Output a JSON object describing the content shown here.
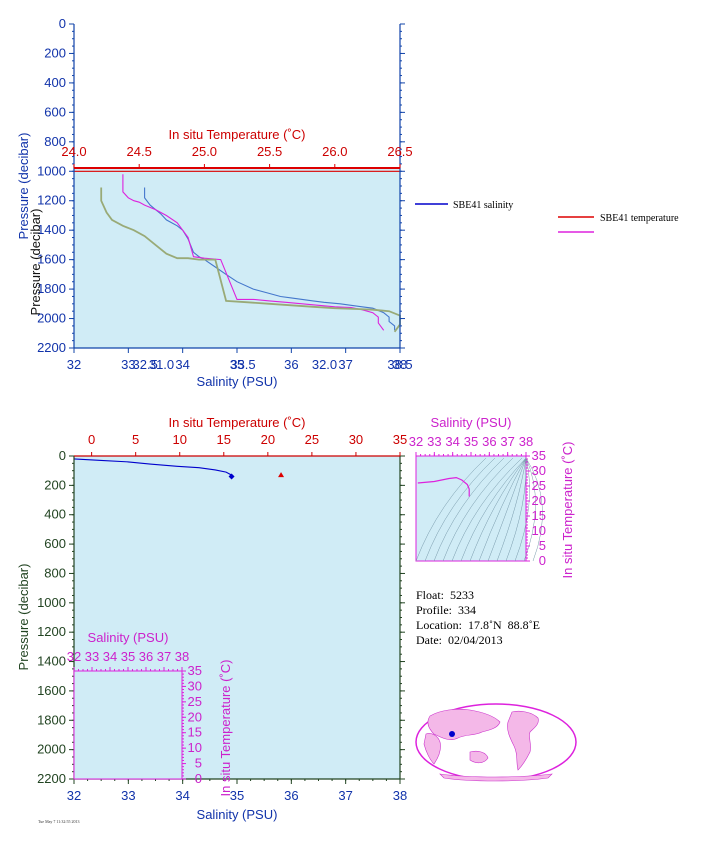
{
  "colors": {
    "plot_bg": "#d0ecf6",
    "salinity": "#0000cc",
    "temperature": "#dd0000",
    "magenta": "#dd22dd",
    "olive": "#99aa77",
    "dark_green": "#224422",
    "tick_blue": "#1144aa"
  },
  "chart_data": [
    {
      "type": "line",
      "title": "",
      "legend": [
        {
          "name": "SBE41 salinity",
          "color": "#0000cc"
        },
        {
          "name": "SBE41 temperature",
          "color": "#dd0000"
        },
        {
          "name": "",
          "color": "#dd22dd"
        }
      ],
      "top_axis": {
        "label": "In situ Temperature (˚C)",
        "ticks": [
          "24.0",
          "24.5",
          "25.0",
          "25.5",
          "26.0",
          "26.5"
        ],
        "range": [
          24.0,
          26.5
        ]
      },
      "bottom_axis": {
        "label": "Salinity (PSU)",
        "ticks": [
          "32",
          "33",
          "34",
          "35",
          "36",
          "37",
          "38"
        ],
        "overlay_ticks": [
          "32.5",
          "31.0",
          "33.5",
          "32.0",
          "38.5"
        ],
        "range": [
          32,
          38
        ]
      },
      "y_axis": {
        "label": "Pressure (decibar)",
        "ticks": [
          "0",
          "200",
          "400",
          "600",
          "800",
          "1000",
          "1200",
          "1400",
          "1600",
          "1800",
          "2000",
          "2200"
        ],
        "range": [
          0,
          2200
        ],
        "plot_range": [
          1000,
          2200
        ]
      },
      "series": [
        {
          "color": "#dd0000",
          "x": [
            24.0,
            26.5
          ],
          "y": [
            1000,
            1000
          ]
        },
        {
          "color": "#4477cc",
          "x": [
            33.3,
            33.3,
            33.4,
            33.5,
            33.6,
            33.7,
            33.9,
            34.0,
            34.1,
            34.2,
            34.3,
            34.4,
            34.6,
            34.8,
            35.0,
            35.3,
            35.6,
            35.8,
            36.0,
            36.2,
            36.4,
            36.6,
            36.9,
            37.1,
            37.3,
            37.5,
            37.7,
            37.8,
            37.8,
            37.9,
            37.9
          ],
          "y": [
            1110,
            1180,
            1230,
            1260,
            1290,
            1330,
            1370,
            1400,
            1460,
            1550,
            1580,
            1600,
            1650,
            1700,
            1750,
            1800,
            1830,
            1850,
            1860,
            1870,
            1880,
            1890,
            1900,
            1910,
            1920,
            1930,
            1960,
            1990,
            2020,
            2050,
            2080
          ]
        },
        {
          "color": "#dd22dd",
          "x": [
            32.9,
            32.9,
            32.9,
            33.0,
            33.1,
            33.2,
            33.3,
            33.5,
            33.7,
            33.9,
            34.0,
            34.1,
            34.2,
            34.4,
            34.7,
            35.0,
            35.3,
            35.6,
            35.9,
            36.2,
            36.5,
            36.8,
            37.1,
            37.3,
            37.5,
            37.6,
            37.6,
            37.7
          ],
          "y": [
            1020,
            1090,
            1140,
            1180,
            1200,
            1210,
            1230,
            1260,
            1300,
            1350,
            1400,
            1450,
            1580,
            1590,
            1600,
            1870,
            1870,
            1880,
            1890,
            1900,
            1910,
            1920,
            1925,
            1940,
            1960,
            1990,
            2030,
            2080
          ]
        },
        {
          "color": "#99aa77",
          "x": [
            32.5,
            32.5,
            32.6,
            32.7,
            32.9,
            33.1,
            33.3,
            33.5,
            33.7,
            33.9,
            34.1,
            34.3,
            34.5,
            34.6,
            34.8,
            35.2,
            35.6,
            36.0,
            36.4,
            36.8,
            37.2,
            37.5,
            37.8,
            38.0,
            38.0,
            37.9
          ],
          "y": [
            1110,
            1200,
            1280,
            1330,
            1370,
            1400,
            1440,
            1500,
            1560,
            1590,
            1590,
            1600,
            1600,
            1600,
            1880,
            1890,
            1900,
            1910,
            1920,
            1930,
            1935,
            1940,
            1950,
            1980,
            2040,
            2090
          ]
        }
      ]
    },
    {
      "type": "line",
      "top_axis": {
        "label": "In situ Temperature (˚C)",
        "ticks": [
          "0",
          "5",
          "10",
          "15",
          "20",
          "25",
          "30",
          "35"
        ],
        "range": [
          -2,
          35
        ]
      },
      "bottom_axis": {
        "label": "Salinity (PSU)",
        "ticks": [
          "32",
          "33",
          "34",
          "35",
          "36",
          "37",
          "38"
        ],
        "range": [
          32,
          38
        ]
      },
      "y_axis": {
        "label": "Pressure (decibar)",
        "ticks": [
          "0",
          "200",
          "400",
          "600",
          "800",
          "1000",
          "1200",
          "1400",
          "1600",
          "1800",
          "2000",
          "2200"
        ],
        "range": [
          0,
          2200
        ]
      },
      "series": [
        {
          "color": "#0000cc",
          "x": [
            32.0,
            32.5,
            33.0,
            33.4,
            33.9,
            34.3,
            34.6,
            34.8,
            34.9,
            34.9
          ],
          "y": [
            20,
            30,
            40,
            55,
            70,
            80,
            95,
            110,
            130,
            140
          ]
        }
      ],
      "markers": [
        {
          "shape": "diamond",
          "color": "#0000cc",
          "x": 34.9,
          "y": 140
        },
        {
          "shape": "triangle",
          "color": "#dd0000",
          "temp": 21.5,
          "y": 130
        }
      ]
    },
    {
      "type": "scatter",
      "top_axis": {
        "label": "Salinity (PSU)",
        "ticks": [
          "32",
          "33",
          "34",
          "35",
          "36",
          "37",
          "38"
        ],
        "range": [
          32,
          38
        ]
      },
      "right_axis": {
        "label": "In situ Temperature (˚C)",
        "ticks": [
          "0",
          "5",
          "10",
          "15",
          "20",
          "25",
          "30",
          "35"
        ],
        "range": [
          0,
          35
        ]
      },
      "series": [
        {
          "color": "#dd22dd",
          "x": [
            32.1,
            33.0,
            33.8,
            34.2,
            34.5,
            34.8,
            34.9,
            34.9
          ],
          "y": [
            26.0,
            26.5,
            27.5,
            27.8,
            27.0,
            25.5,
            24.0,
            21.5
          ]
        }
      ]
    },
    {
      "type": "scatter",
      "top_axis": {
        "label": "Salinity (PSU)",
        "ticks": [
          "32",
          "33",
          "34",
          "35",
          "36",
          "37",
          "38"
        ],
        "range": [
          32,
          38
        ]
      },
      "right_axis": {
        "label": "In situ Temperature (˚C)",
        "ticks": [
          "0",
          "5",
          "10",
          "15",
          "20",
          "25",
          "30",
          "35"
        ],
        "range": [
          0,
          35
        ]
      },
      "series": []
    }
  ],
  "info": {
    "float": "Float:  5233",
    "profile": "Profile:  334",
    "location": "Location:  17.8˚N  88.8˚E",
    "date": "Date:  02/04/2013"
  },
  "footer": "Tue May 7 11:32:55 2013"
}
